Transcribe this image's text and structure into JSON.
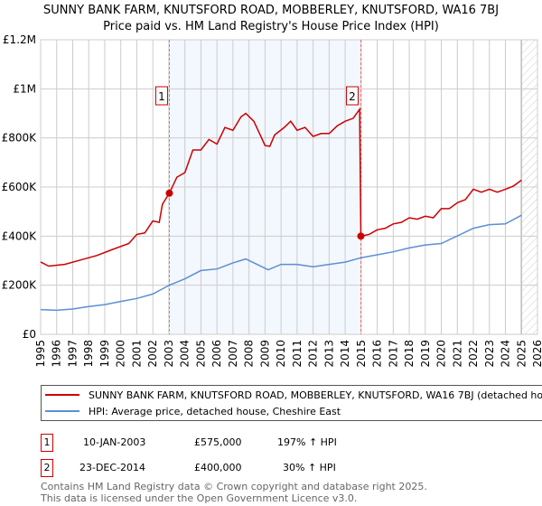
{
  "title_line1": "SUNNY BANK FARM, KNUTSFORD ROAD, MOBBERLEY, KNUTSFORD, WA16 7BJ",
  "title_line2": "Price paid vs. HM Land Registry's House Price Index (HPI)",
  "chart_data": {
    "type": "line",
    "xlim": [
      1995,
      2026
    ],
    "ylim": [
      0,
      1200000
    ],
    "y_ticks": [
      0,
      200000,
      400000,
      600000,
      800000,
      1000000,
      1200000
    ],
    "y_tick_labels": [
      "£0",
      "£200K",
      "£400K",
      "£600K",
      "£800K",
      "£1M",
      "£1.2M"
    ],
    "x_ticks": [
      1995,
      1996,
      1997,
      1998,
      1999,
      2000,
      2001,
      2002,
      2003,
      2004,
      2005,
      2006,
      2007,
      2008,
      2009,
      2010,
      2011,
      2012,
      2013,
      2014,
      2015,
      2016,
      2017,
      2018,
      2019,
      2020,
      2021,
      2022,
      2023,
      2024,
      2025,
      2026
    ],
    "x_tick_labels": [
      "1995",
      "1996",
      "1997",
      "1998",
      "1999",
      "2000",
      "2001",
      "2002",
      "2003",
      "2004",
      "2005",
      "2006",
      "2007",
      "2008",
      "2009",
      "2010",
      "2011",
      "2012",
      "2013",
      "2014",
      "2015",
      "2016",
      "2017",
      "2018",
      "2019",
      "2020",
      "2021",
      "2022",
      "2023",
      "2024",
      "2025",
      "2026"
    ],
    "grid": true,
    "shaded_range": [
      2003.03,
      2014.98
    ],
    "forecast_hatch_from": 2025.0,
    "series": [
      {
        "name": "SUNNY BANK FARM, KNUTSFORD ROAD, MOBBERLEY, KNUTSFORD, WA16 7BJ (detached house)",
        "color": "#cc0000",
        "x": [
          1995,
          1995.5,
          1996.5,
          1997.5,
          1998.5,
          1999.5,
          2000.5,
          2001,
          2001.5,
          2002,
          2002.4,
          2002.6,
          2003.03,
          2003.5,
          2004,
          2004.5,
          2005,
          2005.5,
          2006,
          2006.5,
          2007,
          2007.5,
          2007.8,
          2008.3,
          2008.7,
          2009,
          2009.3,
          2009.6,
          2010.2,
          2010.6,
          2011,
          2011.5,
          2012,
          2012.5,
          2013,
          2013.5,
          2014,
          2014.5,
          2014.9,
          2014.98,
          2015.5,
          2016,
          2016.5,
          2017,
          2017.5,
          2018,
          2018.5,
          2019,
          2019.5,
          2020,
          2020.5,
          2021,
          2021.5,
          2022,
          2022.5,
          2023,
          2023.5,
          2024,
          2024.5,
          2025
        ],
        "y": [
          295000,
          278000,
          285000,
          303000,
          321000,
          346000,
          370000,
          407000,
          413000,
          462000,
          456000,
          530000,
          575000,
          640000,
          659000,
          751000,
          751000,
          794000,
          775000,
          843000,
          831000,
          886000,
          900000,
          868000,
          812000,
          769000,
          766000,
          812000,
          843000,
          868000,
          831000,
          843000,
          806000,
          818000,
          818000,
          849000,
          868000,
          880000,
          917000,
          400000,
          407000,
          426000,
          432000,
          450000,
          456000,
          475000,
          469000,
          481000,
          475000,
          512000,
          512000,
          536000,
          549000,
          591000,
          579000,
          591000,
          579000,
          591000,
          604000,
          628000
        ]
      },
      {
        "name": "HPI: Average price, detached house, Cheshire East",
        "color": "#5b8fd4",
        "x": [
          1995,
          1996,
          1997,
          1998,
          1999,
          2000,
          2001,
          2002,
          2003,
          2004,
          2005,
          2006,
          2007,
          2007.8,
          2008.5,
          2009.2,
          2010,
          2011,
          2012,
          2013,
          2014,
          2015,
          2016,
          2017,
          2018,
          2019,
          2020,
          2021,
          2022,
          2023,
          2024,
          2025
        ],
        "y": [
          101000,
          98000,
          103000,
          113000,
          121000,
          134000,
          146000,
          164000,
          199000,
          226000,
          260000,
          266000,
          291000,
          307000,
          285000,
          263000,
          285000,
          285000,
          275000,
          285000,
          294000,
          312000,
          324000,
          336000,
          352000,
          364000,
          370000,
          401000,
          432000,
          447000,
          450000,
          485000
        ]
      }
    ],
    "sales": [
      {
        "label": "1",
        "x": 2003.03,
        "y": 575000,
        "date": "10-JAN-2003",
        "price": "£575,000",
        "hpi": "197% ↑ HPI"
      },
      {
        "label": "2",
        "x": 2014.98,
        "y": 400000,
        "date": "23-DEC-2014",
        "price": "£400,000",
        "hpi": "30% ↑ HPI"
      }
    ]
  },
  "legend": {
    "red": "SUNNY BANK FARM, KNUTSFORD ROAD, MOBBERLEY, KNUTSFORD, WA16 7BJ (detached house)",
    "blue": "HPI: Average price, detached house, Cheshire East"
  },
  "footer_line1": "Contains HM Land Registry data © Crown copyright and database right 2025.",
  "footer_line2": "This data is licensed under the Open Government Licence v3.0."
}
